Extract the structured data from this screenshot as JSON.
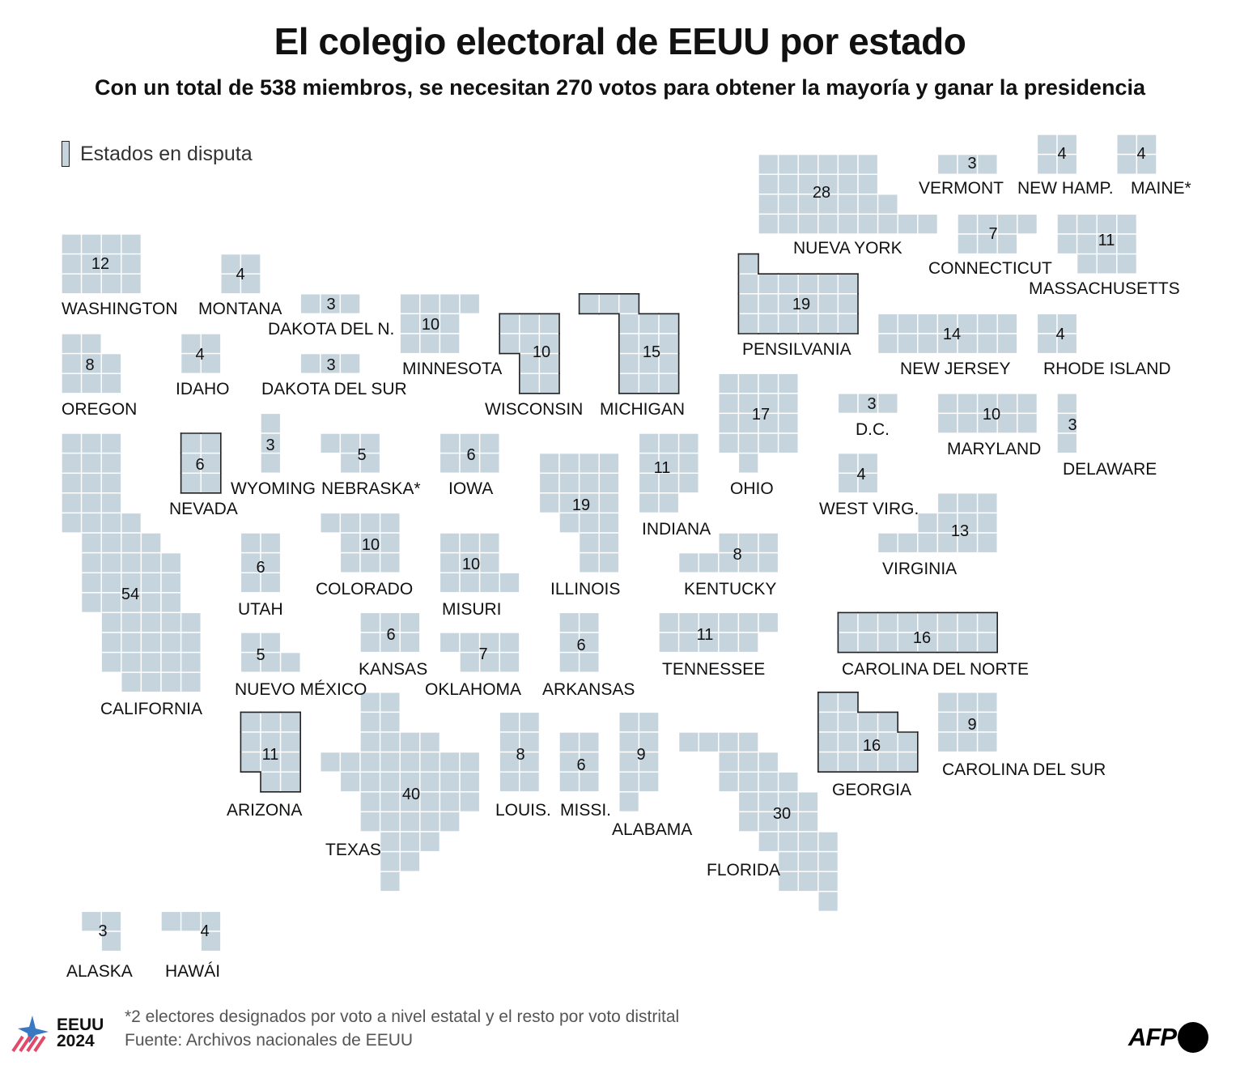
{
  "title": "El colegio electoral de EEUU por estado",
  "subtitle": "Con un total de 538 miembros, se necesitan 270 votos para obtener la mayoría y ganar la presidencia",
  "legend": {
    "label": "Estados en disputa"
  },
  "colors": {
    "tile": "#c6d4de",
    "swing_outline": "#222222",
    "text": "#111111"
  },
  "chart_data": {
    "type": "tile-map",
    "title": "El colegio electoral de EEUU por estado",
    "total_electors": 538,
    "majority": 270,
    "states": [
      {
        "id": "wa",
        "name": "WASHINGTON",
        "votes": 12,
        "swing": false
      },
      {
        "id": "mt",
        "name": "MONTANA",
        "votes": 4,
        "swing": false
      },
      {
        "id": "nd",
        "name": "DAKOTA DEL N.",
        "votes": 3,
        "swing": false
      },
      {
        "id": "or",
        "name": "OREGON",
        "votes": 8,
        "swing": false
      },
      {
        "id": "id",
        "name": "IDAHO",
        "votes": 4,
        "swing": false
      },
      {
        "id": "sd",
        "name": "DAKOTA DEL SUR",
        "votes": 3,
        "swing": false
      },
      {
        "id": "mn",
        "name": "MINNESOTA",
        "votes": 10,
        "swing": false
      },
      {
        "id": "wi",
        "name": "WISCONSIN",
        "votes": 10,
        "swing": true
      },
      {
        "id": "mi",
        "name": "MICHIGAN",
        "votes": 15,
        "swing": true
      },
      {
        "id": "pa",
        "name": "PENSILVANIA",
        "votes": 19,
        "swing": true
      },
      {
        "id": "ny",
        "name": "NUEVA YORK",
        "votes": 28,
        "swing": false
      },
      {
        "id": "vt",
        "name": "VERMONT",
        "votes": 3,
        "swing": false
      },
      {
        "id": "nh",
        "name": "NEW HAMP.",
        "votes": 4,
        "swing": false
      },
      {
        "id": "me",
        "name": "MAINE*",
        "votes": 4,
        "swing": false
      },
      {
        "id": "ct",
        "name": "CONNECTICUT",
        "votes": 7,
        "swing": false
      },
      {
        "id": "ma",
        "name": "MASSACHUSETTS",
        "votes": 11,
        "swing": false
      },
      {
        "id": "nj",
        "name": "NEW JERSEY",
        "votes": 14,
        "swing": false
      },
      {
        "id": "ri",
        "name": "RHODE ISLAND",
        "votes": 4,
        "swing": false
      },
      {
        "id": "dc",
        "name": "D.C.",
        "votes": 3,
        "swing": false
      },
      {
        "id": "md",
        "name": "MARYLAND",
        "votes": 10,
        "swing": false
      },
      {
        "id": "de",
        "name": "DELAWARE",
        "votes": 3,
        "swing": false
      },
      {
        "id": "oh",
        "name": "OHIO",
        "votes": 17,
        "swing": false
      },
      {
        "id": "wv",
        "name": "WEST VIRG.",
        "votes": 4,
        "swing": false
      },
      {
        "id": "va",
        "name": "VIRGINIA",
        "votes": 13,
        "swing": false
      },
      {
        "id": "in",
        "name": "INDIANA",
        "votes": 11,
        "swing": false
      },
      {
        "id": "il",
        "name": "ILLINOIS",
        "votes": 19,
        "swing": false
      },
      {
        "id": "ky",
        "name": "KENTUCKY",
        "votes": 8,
        "swing": false
      },
      {
        "id": "tn",
        "name": "TENNESSEE",
        "votes": 11,
        "swing": false
      },
      {
        "id": "nc",
        "name": "CAROLINA DEL NORTE",
        "votes": 16,
        "swing": true
      },
      {
        "id": "ga",
        "name": "GEORGIA",
        "votes": 16,
        "swing": true
      },
      {
        "id": "sc",
        "name": "CAROLINA DEL SUR",
        "votes": 9,
        "swing": false
      },
      {
        "id": "fl",
        "name": "FLORIDA",
        "votes": 30,
        "swing": false
      },
      {
        "id": "al",
        "name": "ALABAMA",
        "votes": 9,
        "swing": false
      },
      {
        "id": "ms",
        "name": "MISSI.",
        "votes": 6,
        "swing": false
      },
      {
        "id": "la",
        "name": "LOUIS.",
        "votes": 8,
        "swing": false
      },
      {
        "id": "ar",
        "name": "ARKANSAS",
        "votes": 6,
        "swing": false
      },
      {
        "id": "ok",
        "name": "OKLAHOMA",
        "votes": 7,
        "swing": false
      },
      {
        "id": "ks",
        "name": "KANSAS",
        "votes": 6,
        "swing": false
      },
      {
        "id": "mo",
        "name": "MISURI",
        "votes": 10,
        "swing": false
      },
      {
        "id": "ia",
        "name": "IOWA",
        "votes": 6,
        "swing": false
      },
      {
        "id": "ne",
        "name": "NEBRASKA*",
        "votes": 5,
        "swing": false
      },
      {
        "id": "wy",
        "name": "WYOMING",
        "votes": 3,
        "swing": false
      },
      {
        "id": "nv",
        "name": "NEVADA",
        "votes": 6,
        "swing": true
      },
      {
        "id": "co",
        "name": "COLORADO",
        "votes": 10,
        "swing": false
      },
      {
        "id": "ut",
        "name": "UTAH",
        "votes": 6,
        "swing": false
      },
      {
        "id": "nm",
        "name": "NUEVO MÉXICO",
        "votes": 5,
        "swing": false
      },
      {
        "id": "az",
        "name": "ARIZONA",
        "votes": 11,
        "swing": true
      },
      {
        "id": "tx",
        "name": "TEXAS",
        "votes": 40,
        "swing": false
      },
      {
        "id": "ca",
        "name": "CALIFORNIA",
        "votes": 54,
        "swing": false
      },
      {
        "id": "ak",
        "name": "ALASKA",
        "votes": 3,
        "swing": false
      },
      {
        "id": "hi",
        "name": "HAWÁI",
        "votes": 4,
        "swing": false
      }
    ]
  },
  "footer": {
    "footnote": "*2 electores designados por voto a nivel estatal y el resto por voto distrital",
    "source": "Fuente: Archivos nacionales de EEUU",
    "logo_line1": "EEUU",
    "logo_line2": "2024",
    "agency": "AFP"
  }
}
